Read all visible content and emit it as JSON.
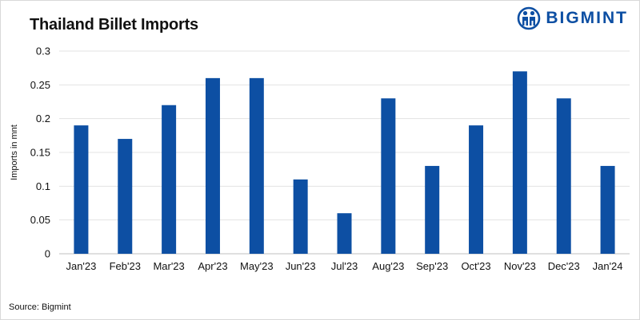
{
  "brand": {
    "name": "BIGMINT",
    "color": "#0d4fa3",
    "icon": "bigmint-logo-icon"
  },
  "source": "Source: Bigmint",
  "chart_data": {
    "type": "bar",
    "title": "Thailand Billet Imports",
    "xlabel": "",
    "ylabel": "Imports in mnt",
    "categories": [
      "Jan'23",
      "Feb'23",
      "Mar'23",
      "Apr'23",
      "May'23",
      "Jun'23",
      "Jul'23",
      "Aug'23",
      "Sep'23",
      "Oct'23",
      "Nov'23",
      "Dec'23",
      "Jan'24"
    ],
    "values": [
      0.19,
      0.17,
      0.22,
      0.26,
      0.26,
      0.11,
      0.06,
      0.23,
      0.13,
      0.19,
      0.27,
      0.23,
      0.13
    ],
    "ylim": [
      0,
      0.3
    ],
    "yticks": [
      "0",
      "0.05",
      "0.1",
      "0.15",
      "0.2",
      "0.25",
      "0.3"
    ],
    "grid": true,
    "legend": "none",
    "bar_color": "#0d4fa3"
  }
}
